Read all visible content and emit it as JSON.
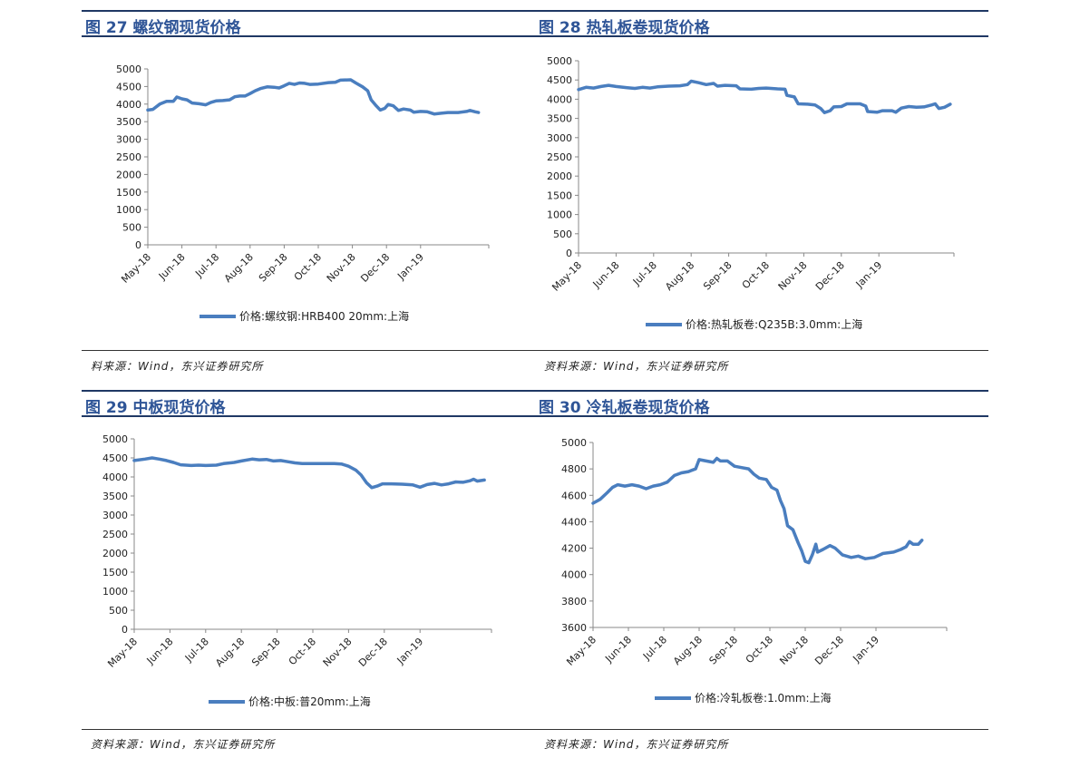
{
  "colors": {
    "title": "#2f5597",
    "line": "#4a7ebf",
    "rule": "#1f3864"
  },
  "chart_data": [
    {
      "type": "line",
      "title": "图 27 螺纹钢现货价格",
      "source": "料来源：Wind，东兴证券研究所",
      "ylim": [
        0,
        5000
      ],
      "yticks": [
        "0",
        "500",
        "1000",
        "1500",
        "2000",
        "2500",
        "3000",
        "3500",
        "4000",
        "4500",
        "5000"
      ],
      "xticks": [
        "May-18",
        "Jun-18",
        "Jul-18",
        "Aug-18",
        "Sep-18",
        "Oct-18",
        "Nov-18",
        "Dec-18",
        "Jan-19"
      ],
      "legend_position": "bottom",
      "series": [
        {
          "name": "价格:螺纹钢:HRB400  20mm:上海",
          "points": [
            [
              0,
              3830
            ],
            [
              0.15,
              3850
            ],
            [
              0.35,
              4000
            ],
            [
              0.55,
              4080
            ],
            [
              0.75,
              4080
            ],
            [
              0.85,
              4200
            ],
            [
              1.0,
              4150
            ],
            [
              1.15,
              4120
            ],
            [
              1.3,
              4030
            ],
            [
              1.5,
              4010
            ],
            [
              1.7,
              3980
            ],
            [
              1.85,
              4050
            ],
            [
              2.0,
              4090
            ],
            [
              2.2,
              4100
            ],
            [
              2.4,
              4120
            ],
            [
              2.55,
              4210
            ],
            [
              2.7,
              4230
            ],
            [
              2.85,
              4230
            ],
            [
              3.0,
              4300
            ],
            [
              3.15,
              4380
            ],
            [
              3.3,
              4440
            ],
            [
              3.5,
              4490
            ],
            [
              3.7,
              4480
            ],
            [
              3.85,
              4460
            ],
            [
              4.0,
              4520
            ],
            [
              4.15,
              4590
            ],
            [
              4.3,
              4560
            ],
            [
              4.45,
              4600
            ],
            [
              4.6,
              4590
            ],
            [
              4.75,
              4560
            ],
            [
              5.0,
              4570
            ],
            [
              5.3,
              4610
            ],
            [
              5.5,
              4620
            ],
            [
              5.65,
              4680
            ],
            [
              5.95,
              4690
            ],
            [
              6.1,
              4600
            ],
            [
              6.3,
              4490
            ],
            [
              6.45,
              4380
            ],
            [
              6.55,
              4120
            ],
            [
              6.7,
              3950
            ],
            [
              6.82,
              3830
            ],
            [
              6.95,
              3880
            ],
            [
              7.05,
              3990
            ],
            [
              7.2,
              3950
            ],
            [
              7.35,
              3820
            ],
            [
              7.5,
              3860
            ],
            [
              7.7,
              3830
            ],
            [
              7.8,
              3770
            ],
            [
              8.0,
              3790
            ],
            [
              8.2,
              3780
            ],
            [
              8.4,
              3720
            ],
            [
              8.6,
              3740
            ],
            [
              8.8,
              3760
            ],
            [
              9.1,
              3760
            ],
            [
              9.35,
              3790
            ],
            [
              9.45,
              3820
            ],
            [
              9.6,
              3780
            ],
            [
              9.7,
              3760
            ]
          ]
        }
      ]
    },
    {
      "type": "line",
      "title": "图 28 热轧板卷现货价格",
      "source": "资料来源：Wind，东兴证券研究所",
      "ylim": [
        0,
        5000
      ],
      "yticks": [
        "0",
        "500",
        "1000",
        "1500",
        "2000",
        "2500",
        "3000",
        "3500",
        "4000",
        "4500",
        "5000"
      ],
      "xticks": [
        "May-18",
        "Jun-18",
        "Jul-18",
        "Aug-18",
        "Sep-18",
        "Oct-18",
        "Nov-18",
        "Dec-18",
        "Jan-19"
      ],
      "legend_position": "bottom",
      "series": [
        {
          "name": "价格:热轧板卷:Q235B:3.0mm:上海",
          "points": [
            [
              0,
              4250
            ],
            [
              0.2,
              4310
            ],
            [
              0.4,
              4290
            ],
            [
              0.6,
              4330
            ],
            [
              0.8,
              4360
            ],
            [
              1.0,
              4330
            ],
            [
              1.3,
              4300
            ],
            [
              1.5,
              4280
            ],
            [
              1.7,
              4310
            ],
            [
              1.9,
              4290
            ],
            [
              2.1,
              4320
            ],
            [
              2.4,
              4340
            ],
            [
              2.7,
              4350
            ],
            [
              2.9,
              4380
            ],
            [
              3.0,
              4470
            ],
            [
              3.2,
              4430
            ],
            [
              3.4,
              4380
            ],
            [
              3.6,
              4410
            ],
            [
              3.7,
              4340
            ],
            [
              3.9,
              4360
            ],
            [
              4.2,
              4350
            ],
            [
              4.3,
              4270
            ],
            [
              4.6,
              4260
            ],
            [
              4.8,
              4280
            ],
            [
              5.0,
              4290
            ],
            [
              5.3,
              4270
            ],
            [
              5.5,
              4260
            ],
            [
              5.55,
              4100
            ],
            [
              5.75,
              4060
            ],
            [
              5.85,
              3880
            ],
            [
              6.1,
              3870
            ],
            [
              6.3,
              3850
            ],
            [
              6.45,
              3760
            ],
            [
              6.55,
              3650
            ],
            [
              6.7,
              3700
            ],
            [
              6.8,
              3800
            ],
            [
              7.0,
              3810
            ],
            [
              7.15,
              3880
            ],
            [
              7.5,
              3880
            ],
            [
              7.65,
              3820
            ],
            [
              7.7,
              3680
            ],
            [
              7.95,
              3660
            ],
            [
              8.1,
              3700
            ],
            [
              8.35,
              3700
            ],
            [
              8.45,
              3660
            ],
            [
              8.6,
              3770
            ],
            [
              8.8,
              3810
            ],
            [
              9.0,
              3790
            ],
            [
              9.2,
              3800
            ],
            [
              9.4,
              3850
            ],
            [
              9.5,
              3880
            ],
            [
              9.6,
              3760
            ],
            [
              9.75,
              3790
            ],
            [
              9.9,
              3870
            ]
          ]
        }
      ]
    },
    {
      "type": "line",
      "title": "图 29 中板现货价格",
      "source": "资料来源：Wind，东兴证券研究所",
      "ylim": [
        0,
        5000
      ],
      "yticks": [
        "0",
        "500",
        "1000",
        "1500",
        "2000",
        "2500",
        "3000",
        "3500",
        "4000",
        "4500",
        "5000"
      ],
      "xticks": [
        "May-18",
        "Jun-18",
        "Jul-18",
        "Aug-18",
        "Sep-18",
        "Oct-18",
        "Nov-18",
        "Dec-18",
        "Jan-19"
      ],
      "legend_position": "bottom",
      "series": [
        {
          "name": "价格:中板:普20mm:上海",
          "points": [
            [
              0,
              4430
            ],
            [
              0.3,
              4470
            ],
            [
              0.5,
              4500
            ],
            [
              0.7,
              4470
            ],
            [
              0.9,
              4430
            ],
            [
              1.1,
              4380
            ],
            [
              1.3,
              4320
            ],
            [
              1.6,
              4300
            ],
            [
              1.8,
              4310
            ],
            [
              2.0,
              4300
            ],
            [
              2.3,
              4310
            ],
            [
              2.5,
              4350
            ],
            [
              2.8,
              4380
            ],
            [
              3.0,
              4420
            ],
            [
              3.3,
              4470
            ],
            [
              3.5,
              4450
            ],
            [
              3.7,
              4460
            ],
            [
              3.9,
              4420
            ],
            [
              4.1,
              4430
            ],
            [
              4.3,
              4400
            ],
            [
              4.5,
              4370
            ],
            [
              4.7,
              4350
            ],
            [
              5.0,
              4350
            ],
            [
              5.3,
              4350
            ],
            [
              5.6,
              4350
            ],
            [
              5.8,
              4340
            ],
            [
              6.0,
              4280
            ],
            [
              6.2,
              4180
            ],
            [
              6.35,
              4050
            ],
            [
              6.5,
              3850
            ],
            [
              6.65,
              3720
            ],
            [
              6.8,
              3760
            ],
            [
              6.95,
              3820
            ],
            [
              7.2,
              3820
            ],
            [
              7.5,
              3810
            ],
            [
              7.8,
              3790
            ],
            [
              8.0,
              3730
            ],
            [
              8.2,
              3800
            ],
            [
              8.4,
              3830
            ],
            [
              8.6,
              3790
            ],
            [
              8.8,
              3820
            ],
            [
              9.0,
              3870
            ],
            [
              9.2,
              3860
            ],
            [
              9.4,
              3900
            ],
            [
              9.5,
              3940
            ],
            [
              9.6,
              3890
            ],
            [
              9.8,
              3920
            ]
          ]
        }
      ]
    },
    {
      "type": "line",
      "title": "图 30 冷轧板卷现货价格",
      "source": "资料来源：Wind，东兴证券研究所",
      "ylim": [
        3600,
        5000
      ],
      "yticks": [
        "3600",
        "3800",
        "4000",
        "4200",
        "4400",
        "4600",
        "4800",
        "5000"
      ],
      "xticks": [
        "May-18",
        "Jun-18",
        "Jul-18",
        "Aug-18",
        "Sep-18",
        "Oct-18",
        "Nov-18",
        "Dec-18",
        "Jan-19"
      ],
      "legend_position": "bottom",
      "series": [
        {
          "name": "价格:冷轧板卷:1.0mm:上海",
          "points": [
            [
              0,
              4540
            ],
            [
              0.2,
              4570
            ],
            [
              0.4,
              4620
            ],
            [
              0.55,
              4660
            ],
            [
              0.7,
              4680
            ],
            [
              0.9,
              4670
            ],
            [
              1.1,
              4680
            ],
            [
              1.3,
              4670
            ],
            [
              1.5,
              4650
            ],
            [
              1.7,
              4670
            ],
            [
              1.9,
              4680
            ],
            [
              2.1,
              4700
            ],
            [
              2.3,
              4750
            ],
            [
              2.5,
              4770
            ],
            [
              2.7,
              4780
            ],
            [
              2.9,
              4800
            ],
            [
              3.0,
              4870
            ],
            [
              3.2,
              4860
            ],
            [
              3.4,
              4850
            ],
            [
              3.5,
              4880
            ],
            [
              3.6,
              4860
            ],
            [
              3.8,
              4860
            ],
            [
              4.0,
              4820
            ],
            [
              4.2,
              4810
            ],
            [
              4.4,
              4800
            ],
            [
              4.55,
              4760
            ],
            [
              4.7,
              4730
            ],
            [
              4.9,
              4720
            ],
            [
              5.05,
              4660
            ],
            [
              5.2,
              4640
            ],
            [
              5.3,
              4560
            ],
            [
              5.4,
              4500
            ],
            [
              5.5,
              4370
            ],
            [
              5.65,
              4340
            ],
            [
              5.8,
              4240
            ],
            [
              5.9,
              4180
            ],
            [
              6.0,
              4100
            ],
            [
              6.1,
              4090
            ],
            [
              6.2,
              4150
            ],
            [
              6.3,
              4230
            ],
            [
              6.35,
              4170
            ],
            [
              6.5,
              4190
            ],
            [
              6.7,
              4220
            ],
            [
              6.85,
              4200
            ],
            [
              7.05,
              4150
            ],
            [
              7.3,
              4130
            ],
            [
              7.5,
              4140
            ],
            [
              7.7,
              4120
            ],
            [
              7.95,
              4130
            ],
            [
              8.2,
              4160
            ],
            [
              8.5,
              4170
            ],
            [
              8.7,
              4190
            ],
            [
              8.85,
              4210
            ],
            [
              8.95,
              4250
            ],
            [
              9.05,
              4230
            ],
            [
              9.2,
              4230
            ],
            [
              9.3,
              4260
            ]
          ]
        }
      ]
    }
  ]
}
